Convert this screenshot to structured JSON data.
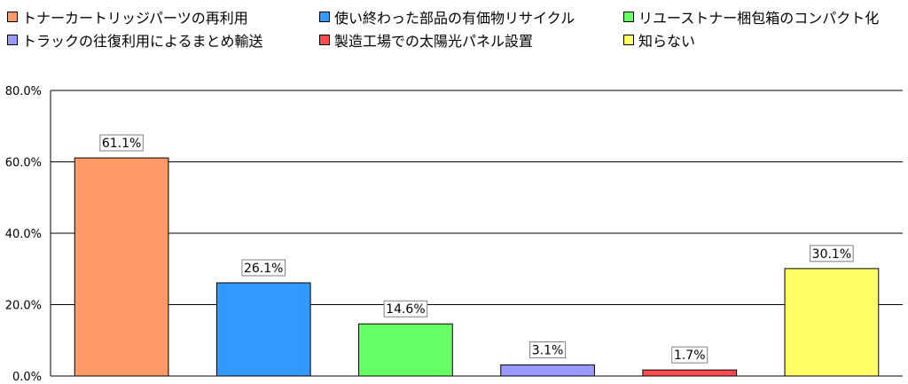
{
  "chart_data": {
    "type": "bar",
    "categories": [
      "トナーカートリッジパーツの再利用",
      "使い終わった部品の有価物リサイクル",
      "リユーストナー梱包箱のコンパクト化",
      "トラックの往復利用によるまとめ輸送",
      "製造工場での太陽光パネル設置",
      "知らない"
    ],
    "values": [
      61.1,
      26.1,
      14.6,
      3.1,
      1.7,
      30.1
    ],
    "value_labels": [
      "61.1%",
      "26.1%",
      "14.6%",
      "3.1%",
      "1.7%",
      "30.1%"
    ],
    "colors": [
      "#ff9966",
      "#3399ff",
      "#66ff66",
      "#9999ff",
      "#ff4d4d",
      "#ffff66"
    ],
    "ylim": [
      0,
      80
    ],
    "yticks": [
      "0.0%",
      "20.0%",
      "40.0%",
      "60.0%",
      "80.0%"
    ],
    "ytick_values": [
      0,
      20,
      40,
      60,
      80
    ],
    "grid": true,
    "legend_position": "top"
  }
}
